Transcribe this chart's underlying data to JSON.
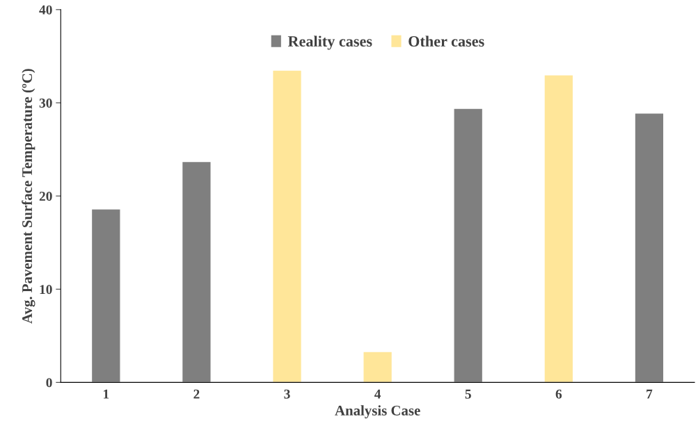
{
  "chart_data": {
    "type": "bar",
    "xlabel": "Analysis Case",
    "ylabel": "Avg. Pavement Surface Temperature (ºC)",
    "categories": [
      "1",
      "2",
      "3",
      "4",
      "5",
      "6",
      "7"
    ],
    "series": [
      {
        "name": "Reality cases",
        "color": "#7f7f7f",
        "values": [
          18.6,
          23.7,
          null,
          null,
          29.4,
          null,
          28.9
        ]
      },
      {
        "name": "Other cases",
        "color": "#ffe699",
        "values": [
          null,
          null,
          33.5,
          3.3,
          null,
          33.0,
          null
        ]
      }
    ],
    "ylim": [
      0,
      40
    ],
    "yticks": [
      0,
      10,
      20,
      30,
      40
    ],
    "grid": false,
    "legend": "top"
  }
}
